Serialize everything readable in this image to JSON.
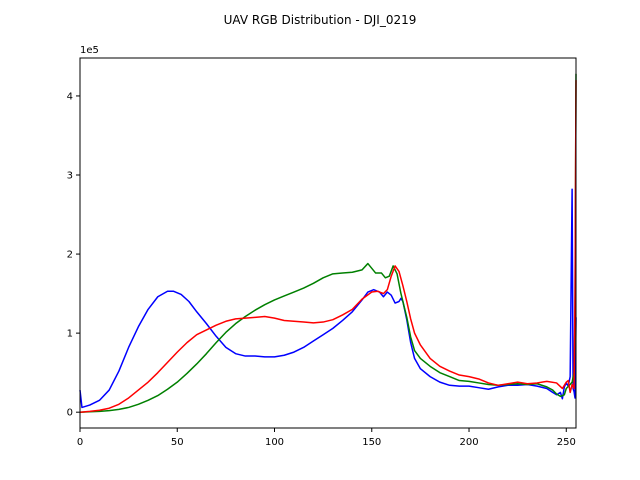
{
  "chart_data": {
    "type": "line",
    "title": "UAV RGB Distribution - DJI_0219",
    "xlabel": "",
    "ylabel": "",
    "y_multiplier_label": "1e5",
    "xlim": [
      0,
      255
    ],
    "ylim": [
      -20000,
      448000
    ],
    "xticks": [
      0,
      50,
      100,
      150,
      200,
      250
    ],
    "yticks": [
      0,
      100000,
      200000,
      300000,
      400000
    ],
    "ytick_labels": [
      "0",
      "1",
      "2",
      "3",
      "4"
    ],
    "grid": false,
    "legend": "none",
    "series": [
      {
        "color": "#0000ff",
        "points": [
          [
            0,
            28000
          ],
          [
            1,
            6000
          ],
          [
            5,
            9000
          ],
          [
            10,
            15000
          ],
          [
            15,
            28000
          ],
          [
            20,
            52000
          ],
          [
            25,
            82000
          ],
          [
            30,
            108000
          ],
          [
            35,
            130000
          ],
          [
            40,
            146000
          ],
          [
            45,
            153000
          ],
          [
            48,
            153000
          ],
          [
            52,
            149000
          ],
          [
            56,
            140000
          ],
          [
            60,
            127000
          ],
          [
            65,
            112000
          ],
          [
            70,
            96000
          ],
          [
            75,
            82000
          ],
          [
            80,
            74000
          ],
          [
            85,
            71000
          ],
          [
            90,
            71000
          ],
          [
            95,
            70000
          ],
          [
            100,
            70000
          ],
          [
            105,
            72000
          ],
          [
            110,
            76000
          ],
          [
            115,
            82000
          ],
          [
            120,
            90000
          ],
          [
            125,
            98000
          ],
          [
            130,
            106000
          ],
          [
            135,
            116000
          ],
          [
            140,
            127000
          ],
          [
            145,
            142000
          ],
          [
            148,
            152000
          ],
          [
            151,
            155000
          ],
          [
            154,
            152000
          ],
          [
            156,
            146000
          ],
          [
            158,
            152000
          ],
          [
            160,
            148000
          ],
          [
            162,
            138000
          ],
          [
            164,
            140000
          ],
          [
            165,
            144000
          ],
          [
            166,
            140000
          ],
          [
            168,
            117000
          ],
          [
            170,
            88000
          ],
          [
            172,
            68000
          ],
          [
            175,
            55000
          ],
          [
            180,
            45000
          ],
          [
            185,
            38000
          ],
          [
            190,
            34000
          ],
          [
            195,
            33000
          ],
          [
            200,
            33000
          ],
          [
            205,
            31000
          ],
          [
            210,
            29000
          ],
          [
            215,
            32000
          ],
          [
            220,
            34000
          ],
          [
            225,
            34000
          ],
          [
            230,
            35000
          ],
          [
            235,
            33000
          ],
          [
            240,
            30000
          ],
          [
            243,
            25000
          ],
          [
            245,
            22000
          ],
          [
            247,
            25000
          ],
          [
            248,
            17000
          ],
          [
            249,
            32000
          ],
          [
            250,
            37000
          ],
          [
            251,
            33000
          ],
          [
            252,
            45000
          ],
          [
            253,
            282000
          ],
          [
            253.5,
            30000
          ],
          [
            254,
            26000
          ],
          [
            254.5,
            18000
          ],
          [
            255,
            120000
          ]
        ]
      },
      {
        "color": "#008000",
        "points": [
          [
            0,
            0
          ],
          [
            5,
            500
          ],
          [
            10,
            1000
          ],
          [
            15,
            2000
          ],
          [
            20,
            3500
          ],
          [
            25,
            6000
          ],
          [
            30,
            10000
          ],
          [
            35,
            15000
          ],
          [
            40,
            21000
          ],
          [
            45,
            29000
          ],
          [
            50,
            38000
          ],
          [
            55,
            49000
          ],
          [
            60,
            61000
          ],
          [
            65,
            74000
          ],
          [
            70,
            88000
          ],
          [
            75,
            101000
          ],
          [
            80,
            112000
          ],
          [
            85,
            121000
          ],
          [
            90,
            129000
          ],
          [
            95,
            136000
          ],
          [
            100,
            142000
          ],
          [
            105,
            147000
          ],
          [
            110,
            152000
          ],
          [
            115,
            157000
          ],
          [
            120,
            163000
          ],
          [
            125,
            170000
          ],
          [
            130,
            175000
          ],
          [
            135,
            176000
          ],
          [
            140,
            177000
          ],
          [
            145,
            180000
          ],
          [
            148,
            188000
          ],
          [
            150,
            182000
          ],
          [
            152,
            176000
          ],
          [
            155,
            176000
          ],
          [
            157,
            170000
          ],
          [
            159,
            172000
          ],
          [
            161,
            185000
          ],
          [
            163,
            175000
          ],
          [
            165,
            150000
          ],
          [
            168,
            120000
          ],
          [
            170,
            95000
          ],
          [
            172,
            78000
          ],
          [
            175,
            68000
          ],
          [
            180,
            58000
          ],
          [
            185,
            50000
          ],
          [
            190,
            45000
          ],
          [
            195,
            40000
          ],
          [
            200,
            39000
          ],
          [
            205,
            37000
          ],
          [
            210,
            35000
          ],
          [
            215,
            34000
          ],
          [
            220,
            35000
          ],
          [
            225,
            36000
          ],
          [
            230,
            35000
          ],
          [
            235,
            36000
          ],
          [
            240,
            32000
          ],
          [
            243,
            28000
          ],
          [
            245,
            23000
          ],
          [
            247,
            20000
          ],
          [
            249,
            22000
          ],
          [
            250,
            30000
          ],
          [
            252,
            35000
          ],
          [
            253,
            38000
          ],
          [
            254,
            50000
          ],
          [
            254.5,
            120000
          ],
          [
            255,
            428000
          ]
        ]
      },
      {
        "color": "#ff0000",
        "points": [
          [
            0,
            0
          ],
          [
            5,
            1000
          ],
          [
            10,
            2500
          ],
          [
            15,
            5000
          ],
          [
            20,
            10000
          ],
          [
            25,
            18000
          ],
          [
            30,
            28000
          ],
          [
            35,
            38000
          ],
          [
            40,
            50000
          ],
          [
            45,
            63000
          ],
          [
            50,
            76000
          ],
          [
            55,
            88000
          ],
          [
            60,
            98000
          ],
          [
            65,
            104000
          ],
          [
            70,
            110000
          ],
          [
            75,
            115000
          ],
          [
            80,
            118000
          ],
          [
            85,
            119000
          ],
          [
            90,
            120000
          ],
          [
            95,
            121000
          ],
          [
            100,
            119000
          ],
          [
            105,
            116000
          ],
          [
            110,
            115000
          ],
          [
            115,
            114000
          ],
          [
            120,
            113000
          ],
          [
            125,
            114000
          ],
          [
            130,
            117000
          ],
          [
            135,
            123000
          ],
          [
            140,
            130000
          ],
          [
            145,
            143000
          ],
          [
            150,
            152000
          ],
          [
            153,
            153000
          ],
          [
            156,
            150000
          ],
          [
            158,
            155000
          ],
          [
            160,
            172000
          ],
          [
            162,
            185000
          ],
          [
            164,
            178000
          ],
          [
            166,
            160000
          ],
          [
            168,
            140000
          ],
          [
            170,
            118000
          ],
          [
            172,
            100000
          ],
          [
            175,
            85000
          ],
          [
            180,
            68000
          ],
          [
            185,
            58000
          ],
          [
            190,
            52000
          ],
          [
            195,
            47000
          ],
          [
            200,
            45000
          ],
          [
            205,
            42000
          ],
          [
            210,
            37000
          ],
          [
            215,
            34000
          ],
          [
            220,
            36000
          ],
          [
            225,
            38000
          ],
          [
            230,
            36000
          ],
          [
            235,
            37000
          ],
          [
            240,
            39000
          ],
          [
            245,
            37000
          ],
          [
            248,
            30000
          ],
          [
            250,
            38000
          ],
          [
            251,
            40000
          ],
          [
            252,
            25000
          ],
          [
            253,
            35000
          ],
          [
            254,
            30000
          ],
          [
            254.5,
            150000
          ],
          [
            255,
            420000
          ]
        ]
      }
    ]
  }
}
